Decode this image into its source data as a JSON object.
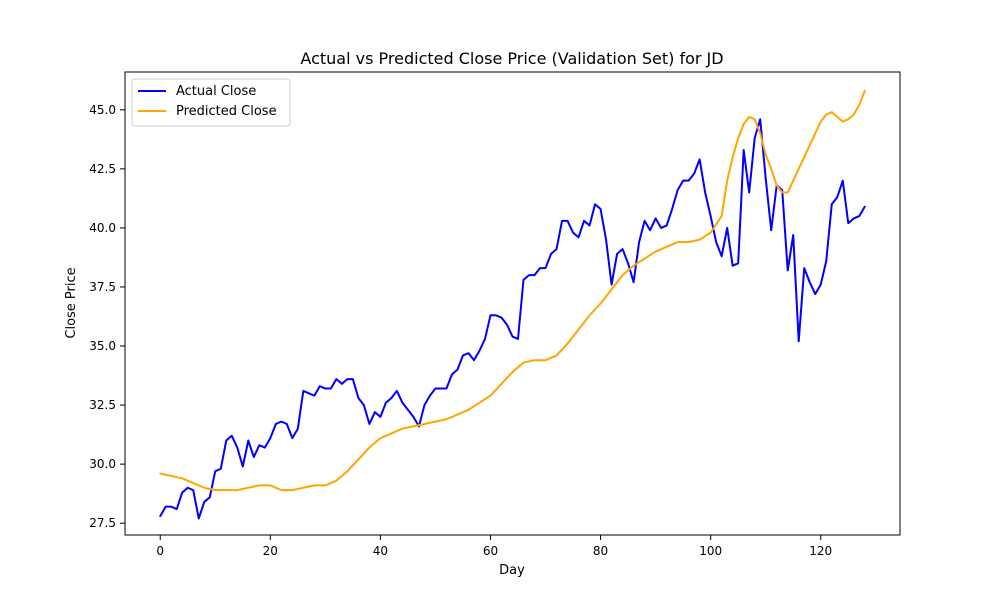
{
  "chart_data": {
    "type": "line",
    "title": "Actual vs Predicted Close Price (Validation Set) for JD",
    "xlabel": "Day",
    "ylabel": "Close Price",
    "xlim": [
      -6.4,
      134.4
    ],
    "ylim": [
      27.0,
      46.6
    ],
    "xticks": [
      0,
      20,
      40,
      60,
      80,
      100,
      120
    ],
    "yticks": [
      27.5,
      30.0,
      32.5,
      35.0,
      37.5,
      40.0,
      42.5,
      45.0
    ],
    "grid": false,
    "legend_position": "top-left",
    "series": [
      {
        "name": "Actual Close",
        "color": "#0000ff",
        "points": [
          [
            0,
            27.8
          ],
          [
            1,
            28.2
          ],
          [
            2,
            28.2
          ],
          [
            3,
            28.1
          ],
          [
            4,
            28.8
          ],
          [
            5,
            29.0
          ],
          [
            6,
            28.9
          ],
          [
            7,
            27.7
          ],
          [
            8,
            28.4
          ],
          [
            9,
            28.6
          ],
          [
            10,
            29.7
          ],
          [
            11,
            29.8
          ],
          [
            12,
            31.0
          ],
          [
            13,
            31.2
          ],
          [
            14,
            30.7
          ],
          [
            15,
            29.9
          ],
          [
            16,
            31.0
          ],
          [
            17,
            30.3
          ],
          [
            18,
            30.8
          ],
          [
            19,
            30.7
          ],
          [
            20,
            31.1
          ],
          [
            21,
            31.7
          ],
          [
            22,
            31.8
          ],
          [
            23,
            31.7
          ],
          [
            24,
            31.1
          ],
          [
            25,
            31.5
          ],
          [
            26,
            33.1
          ],
          [
            27,
            33.0
          ],
          [
            28,
            32.9
          ],
          [
            29,
            33.3
          ],
          [
            30,
            33.2
          ],
          [
            31,
            33.2
          ],
          [
            32,
            33.6
          ],
          [
            33,
            33.4
          ],
          [
            34,
            33.6
          ],
          [
            35,
            33.6
          ],
          [
            36,
            32.8
          ],
          [
            37,
            32.5
          ],
          [
            38,
            31.7
          ],
          [
            39,
            32.2
          ],
          [
            40,
            32.0
          ],
          [
            41,
            32.6
          ],
          [
            42,
            32.8
          ],
          [
            43,
            33.1
          ],
          [
            44,
            32.6
          ],
          [
            45,
            32.3
          ],
          [
            46,
            32.0
          ],
          [
            47,
            31.6
          ],
          [
            48,
            32.5
          ],
          [
            49,
            32.9
          ],
          [
            50,
            33.2
          ],
          [
            51,
            33.2
          ],
          [
            52,
            33.2
          ],
          [
            53,
            33.8
          ],
          [
            54,
            34.0
          ],
          [
            55,
            34.6
          ],
          [
            56,
            34.7
          ],
          [
            57,
            34.4
          ],
          [
            58,
            34.8
          ],
          [
            59,
            35.3
          ],
          [
            60,
            36.3
          ],
          [
            61,
            36.3
          ],
          [
            62,
            36.2
          ],
          [
            63,
            35.9
          ],
          [
            64,
            35.4
          ],
          [
            65,
            35.3
          ],
          [
            66,
            37.8
          ],
          [
            67,
            38.0
          ],
          [
            68,
            38.0
          ],
          [
            69,
            38.3
          ],
          [
            70,
            38.3
          ],
          [
            71,
            38.9
          ],
          [
            72,
            39.1
          ],
          [
            73,
            40.3
          ],
          [
            74,
            40.3
          ],
          [
            75,
            39.8
          ],
          [
            76,
            39.6
          ],
          [
            77,
            40.3
          ],
          [
            78,
            40.1
          ],
          [
            79,
            41.0
          ],
          [
            80,
            40.8
          ],
          [
            81,
            39.5
          ],
          [
            82,
            37.6
          ],
          [
            83,
            38.9
          ],
          [
            84,
            39.1
          ],
          [
            85,
            38.5
          ],
          [
            86,
            37.7
          ],
          [
            87,
            39.4
          ],
          [
            88,
            40.3
          ],
          [
            89,
            39.9
          ],
          [
            90,
            40.4
          ],
          [
            91,
            40.0
          ],
          [
            92,
            40.1
          ],
          [
            93,
            40.8
          ],
          [
            94,
            41.6
          ],
          [
            95,
            42.0
          ],
          [
            96,
            42.0
          ],
          [
            97,
            42.3
          ],
          [
            98,
            42.9
          ],
          [
            99,
            41.5
          ],
          [
            100,
            40.5
          ],
          [
            101,
            39.4
          ],
          [
            102,
            38.8
          ],
          [
            103,
            40.0
          ],
          [
            104,
            38.4
          ],
          [
            105,
            38.5
          ],
          [
            106,
            43.3
          ],
          [
            107,
            41.5
          ],
          [
            108,
            43.8
          ],
          [
            109,
            44.6
          ],
          [
            110,
            42.1
          ],
          [
            111,
            39.9
          ],
          [
            112,
            41.8
          ],
          [
            113,
            41.6
          ],
          [
            114,
            38.2
          ],
          [
            115,
            39.7
          ],
          [
            116,
            35.2
          ],
          [
            117,
            38.3
          ],
          [
            118,
            37.7
          ],
          [
            119,
            37.2
          ],
          [
            120,
            37.6
          ],
          [
            121,
            38.6
          ],
          [
            122,
            41.0
          ],
          [
            123,
            41.3
          ],
          [
            124,
            42.0
          ],
          [
            125,
            40.2
          ],
          [
            126,
            40.4
          ],
          [
            127,
            40.5
          ],
          [
            128,
            40.9
          ]
        ]
      },
      {
        "name": "Predicted Close",
        "color": "#ffa500",
        "points": [
          [
            0,
            29.6
          ],
          [
            2,
            29.5
          ],
          [
            4,
            29.4
          ],
          [
            6,
            29.2
          ],
          [
            8,
            29.0
          ],
          [
            10,
            28.9
          ],
          [
            12,
            28.9
          ],
          [
            14,
            28.9
          ],
          [
            16,
            29.0
          ],
          [
            18,
            29.1
          ],
          [
            20,
            29.1
          ],
          [
            22,
            28.9
          ],
          [
            24,
            28.9
          ],
          [
            26,
            29.0
          ],
          [
            28,
            29.1
          ],
          [
            30,
            29.1
          ],
          [
            32,
            29.3
          ],
          [
            34,
            29.7
          ],
          [
            36,
            30.2
          ],
          [
            38,
            30.7
          ],
          [
            40,
            31.1
          ],
          [
            42,
            31.3
          ],
          [
            44,
            31.5
          ],
          [
            46,
            31.6
          ],
          [
            48,
            31.7
          ],
          [
            50,
            31.8
          ],
          [
            52,
            31.9
          ],
          [
            54,
            32.1
          ],
          [
            56,
            32.3
          ],
          [
            58,
            32.6
          ],
          [
            60,
            32.9
          ],
          [
            62,
            33.4
          ],
          [
            64,
            33.9
          ],
          [
            66,
            34.3
          ],
          [
            68,
            34.4
          ],
          [
            70,
            34.4
          ],
          [
            72,
            34.6
          ],
          [
            74,
            35.1
          ],
          [
            76,
            35.7
          ],
          [
            78,
            36.3
          ],
          [
            80,
            36.8
          ],
          [
            82,
            37.4
          ],
          [
            84,
            38.0
          ],
          [
            86,
            38.4
          ],
          [
            88,
            38.7
          ],
          [
            90,
            39.0
          ],
          [
            92,
            39.2
          ],
          [
            94,
            39.4
          ],
          [
            96,
            39.4
          ],
          [
            98,
            39.5
          ],
          [
            100,
            39.8
          ],
          [
            102,
            40.5
          ],
          [
            103,
            42.0
          ],
          [
            104,
            43.0
          ],
          [
            105,
            43.8
          ],
          [
            106,
            44.4
          ],
          [
            107,
            44.7
          ],
          [
            108,
            44.6
          ],
          [
            109,
            44.0
          ],
          [
            110,
            43.1
          ],
          [
            111,
            42.5
          ],
          [
            112,
            41.8
          ],
          [
            113,
            41.5
          ],
          [
            114,
            41.5
          ],
          [
            115,
            42.0
          ],
          [
            116,
            42.5
          ],
          [
            117,
            43.0
          ],
          [
            118,
            43.5
          ],
          [
            119,
            44.0
          ],
          [
            120,
            44.5
          ],
          [
            121,
            44.8
          ],
          [
            122,
            44.9
          ],
          [
            123,
            44.7
          ],
          [
            124,
            44.5
          ],
          [
            125,
            44.6
          ],
          [
            126,
            44.8
          ],
          [
            127,
            45.2
          ],
          [
            128,
            45.8
          ]
        ]
      }
    ]
  }
}
